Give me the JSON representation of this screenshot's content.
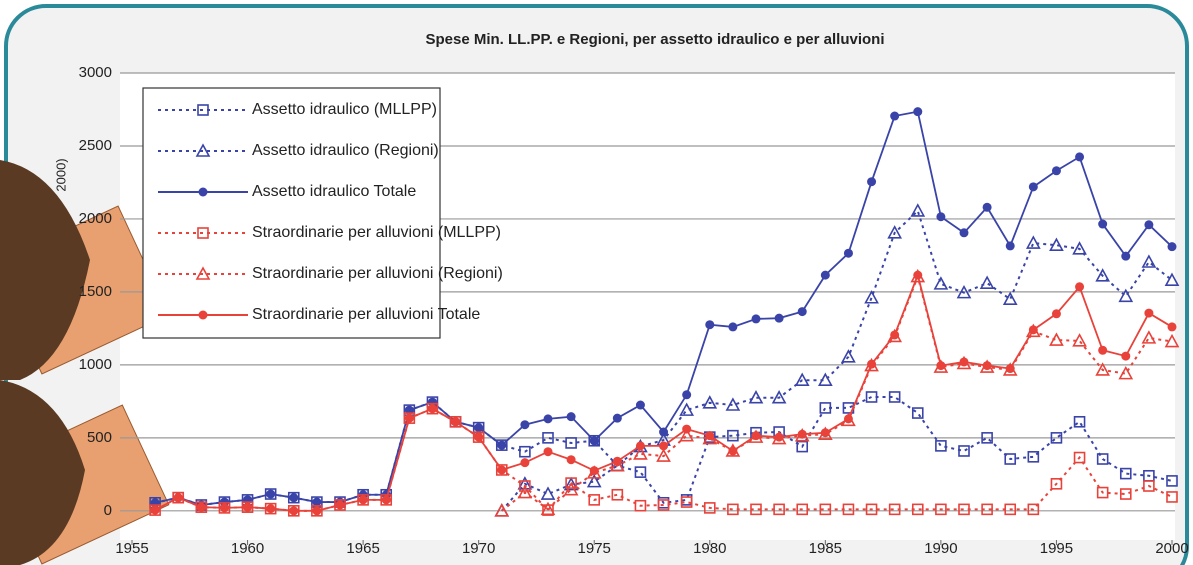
{
  "chart_data": {
    "type": "line",
    "title": "Spese Min. LL.PP. e Regioni, per assetto idraulico e per alluvioni",
    "y_label": "2000)",
    "x": [
      1956,
      1957,
      1958,
      1959,
      1960,
      1961,
      1962,
      1963,
      1964,
      1965,
      1966,
      1967,
      1968,
      1969,
      1970,
      1971,
      1972,
      1973,
      1974,
      1975,
      1976,
      1977,
      1978,
      1979,
      1980,
      1981,
      1982,
      1983,
      1984,
      1985,
      1986,
      1987,
      1988,
      1989,
      1990,
      1991,
      1992,
      1993,
      1994,
      1995,
      1996,
      1997,
      1998,
      1999,
      2000
    ],
    "xlim": [
      1955,
      2000
    ],
    "xticks": [
      1955,
      1960,
      1965,
      1970,
      1975,
      1980,
      1985,
      1990,
      1995,
      2000
    ],
    "ylim": [
      -200,
      3000
    ],
    "yticks": [
      0,
      500,
      1000,
      1500,
      2000,
      2500,
      3000
    ],
    "grid": true,
    "series": [
      {
        "name": "Assetto idraulico (MLLPP)",
        "color": "#3a44a8",
        "marker": "square",
        "dashed": true,
        "values": [
          55,
          90,
          40,
          60,
          75,
          115,
          90,
          60,
          60,
          110,
          110,
          690,
          745,
          610,
          570,
          450,
          405,
          500,
          465,
          480,
          310,
          265,
          55,
          75,
          505,
          515,
          535,
          540,
          440,
          705,
          705,
          780,
          780,
          670,
          445,
          410,
          500,
          355,
          370,
          500,
          610,
          355,
          255,
          240,
          205
        ]
      },
      {
        "name": "Assetto idraulico (Regioni)",
        "color": "#3a44a8",
        "marker": "triangle",
        "dashed": true,
        "values": [
          null,
          null,
          null,
          null,
          null,
          null,
          null,
          null,
          null,
          null,
          null,
          null,
          null,
          null,
          null,
          0,
          185,
          115,
          180,
          200,
          310,
          440,
          485,
          690,
          740,
          725,
          775,
          775,
          895,
          895,
          1055,
          1460,
          1905,
          2055,
          1555,
          1495,
          1560,
          1450,
          1835,
          1820,
          1795,
          1610,
          1470,
          1705,
          1580
        ]
      },
      {
        "name": "Assetto idraulico Totale",
        "color": "#3a44a8",
        "marker": "circle",
        "dashed": false,
        "values": [
          55,
          90,
          40,
          60,
          75,
          115,
          90,
          60,
          60,
          110,
          110,
          690,
          745,
          610,
          570,
          450,
          590,
          630,
          645,
          480,
          635,
          725,
          540,
          795,
          1275,
          1260,
          1315,
          1320,
          1365,
          1615,
          1765,
          2255,
          2705,
          2735,
          2015,
          1905,
          2080,
          1815,
          2220,
          2330,
          2425,
          1965,
          1745,
          1960,
          1810
        ]
      },
      {
        "name": "Straordinarie per alluvioni (MLLPP)",
        "color": "#e8423a",
        "marker": "square",
        "dashed": true,
        "values": [
          5,
          90,
          25,
          20,
          25,
          15,
          0,
          0,
          40,
          75,
          75,
          635,
          700,
          610,
          505,
          280,
          170,
          5,
          190,
          75,
          110,
          35,
          40,
          60,
          20,
          10,
          10,
          10,
          10,
          10,
          10,
          10,
          10,
          10,
          10,
          10,
          10,
          10,
          10,
          185,
          365,
          125,
          115,
          170,
          95
        ]
      },
      {
        "name": "Straordinarie per alluvioni (Regioni)",
        "color": "#e8423a",
        "marker": "triangle",
        "dashed": true,
        "values": [
          null,
          null,
          null,
          null,
          null,
          null,
          null,
          null,
          null,
          null,
          null,
          null,
          null,
          null,
          null,
          0,
          125,
          10,
          145,
          260,
          310,
          390,
          375,
          515,
          495,
          410,
          505,
          495,
          515,
          525,
          620,
          995,
          1195,
          1605,
          985,
          1010,
          985,
          965,
          1230,
          1170,
          1165,
          965,
          940,
          1185,
          1160
        ]
      },
      {
        "name": "Straordinarie per alluvioni Totale",
        "color": "#e8423a",
        "marker": "circle",
        "dashed": false,
        "values": [
          5,
          90,
          25,
          20,
          25,
          15,
          0,
          0,
          40,
          75,
          75,
          635,
          700,
          610,
          505,
          280,
          330,
          405,
          350,
          275,
          340,
          445,
          445,
          560,
          515,
          410,
          515,
          505,
          525,
          535,
          630,
          1005,
          1205,
          1615,
          995,
          1020,
          995,
          975,
          1240,
          1350,
          1535,
          1100,
          1060,
          1355,
          1260
        ]
      }
    ]
  }
}
